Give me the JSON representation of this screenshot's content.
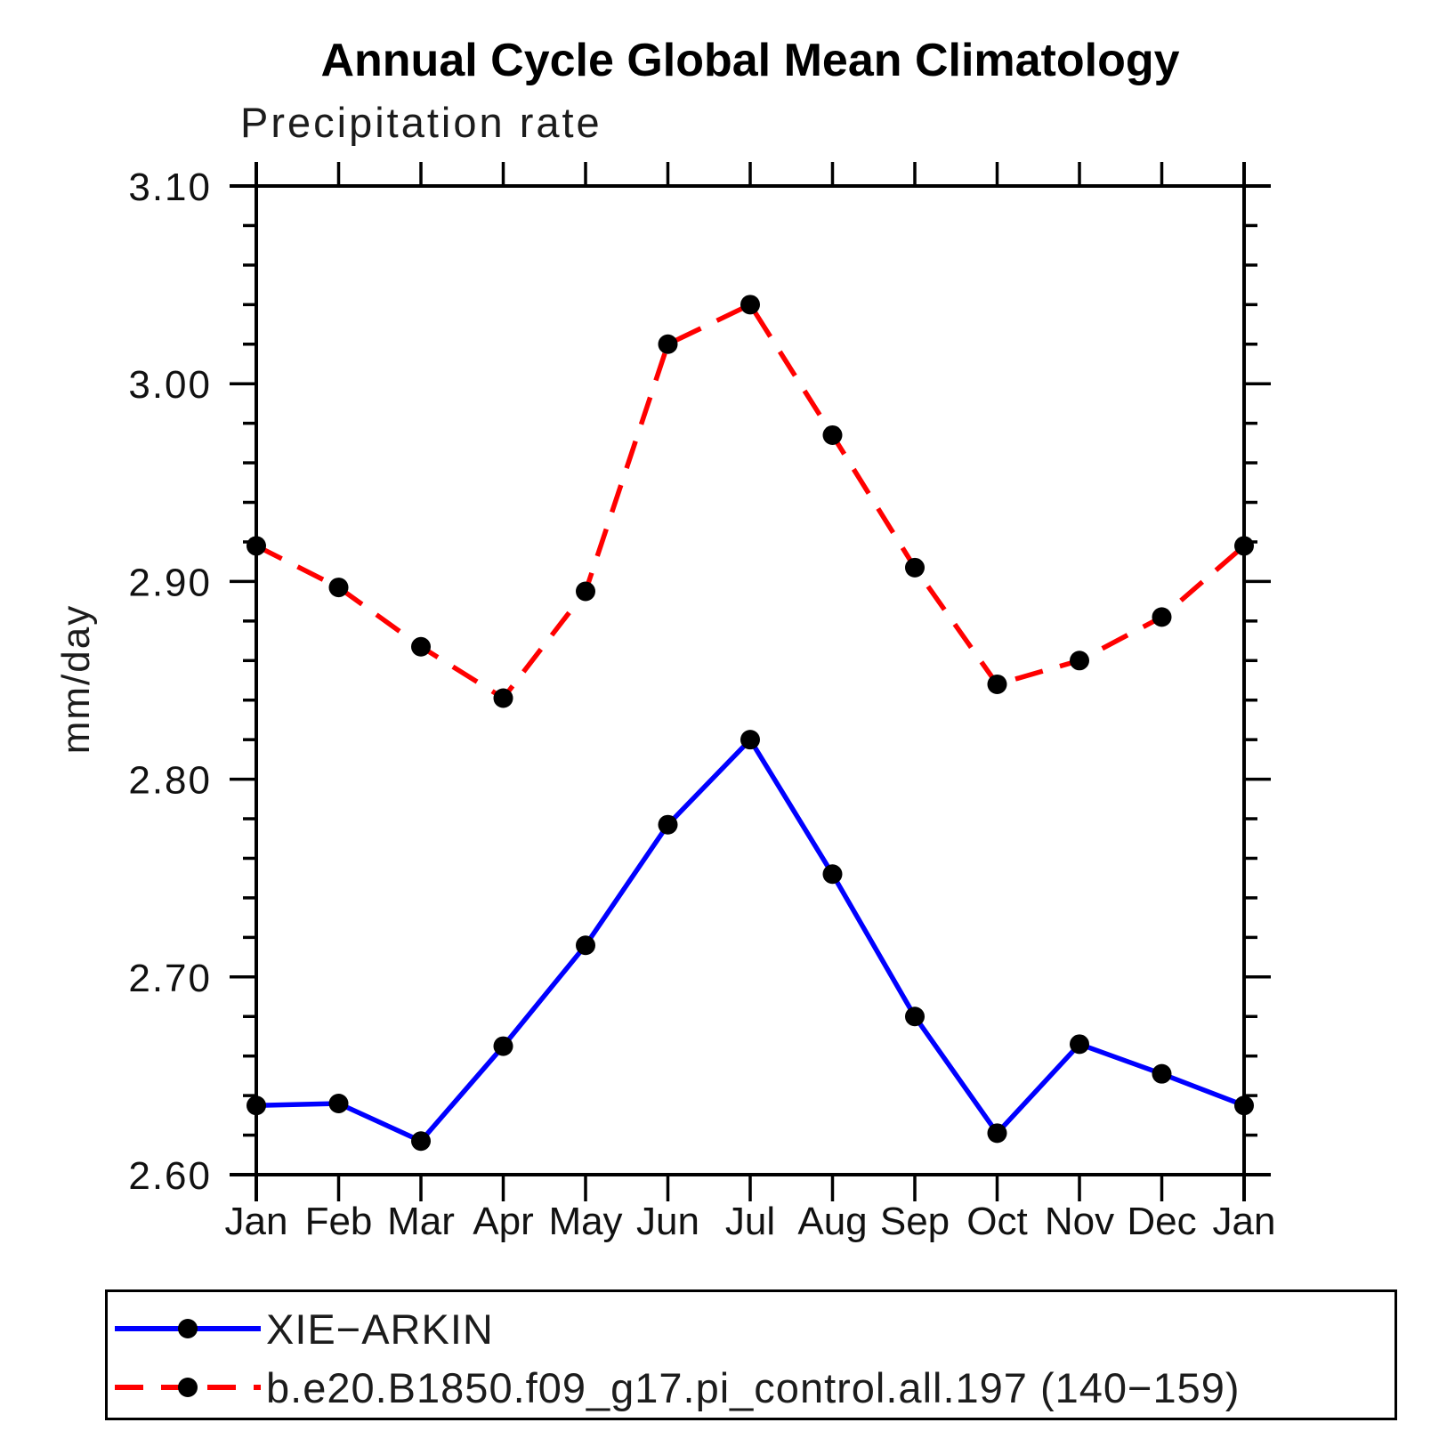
{
  "title": "Annual Cycle Global Mean Climatology",
  "subtitle": "Precipitation rate",
  "ylabel": "mm/day",
  "chart_data": {
    "type": "line",
    "categories": [
      "Jan",
      "Feb",
      "Mar",
      "Apr",
      "May",
      "Jun",
      "Jul",
      "Aug",
      "Sep",
      "Oct",
      "Nov",
      "Dec",
      "Jan"
    ],
    "series": [
      {
        "name": "XIE−ARKIN",
        "color": "#0000ff",
        "line_style": "solid",
        "values": [
          2.635,
          2.636,
          2.617,
          2.665,
          2.716,
          2.777,
          2.82,
          2.752,
          2.68,
          2.621,
          2.666,
          2.651,
          2.635
        ]
      },
      {
        "name": "b.e20.B1850.f09_g17.pi_control.all.197 (140−159)",
        "color": "#ff0000",
        "line_style": "dashed",
        "values": [
          2.918,
          2.897,
          2.867,
          2.841,
          2.895,
          3.02,
          3.04,
          2.974,
          2.907,
          2.848,
          2.86,
          2.882,
          2.918
        ]
      }
    ],
    "marker_color": "#000000",
    "ylim": [
      2.6,
      3.1
    ],
    "yticks": [
      "2.60",
      "2.70",
      "2.80",
      "2.90",
      "3.00",
      "3.10"
    ],
    "y_minor_step": 0.02,
    "grid": "off",
    "legend_position": "bottom"
  }
}
